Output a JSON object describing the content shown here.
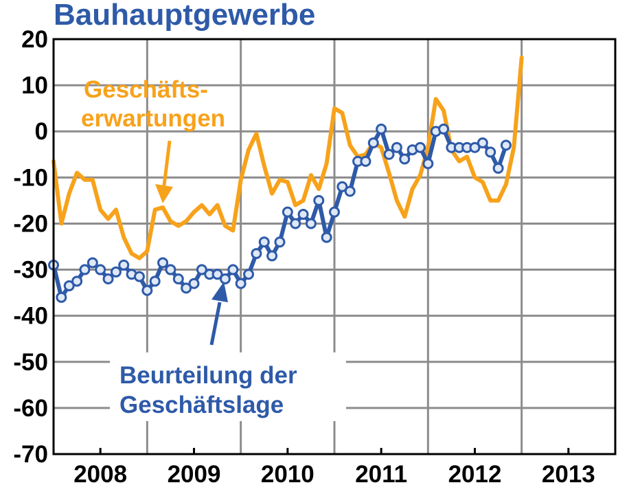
{
  "chart_data": {
    "type": "line",
    "title": "Bauhauptgewerbe",
    "xlabel": "",
    "ylabel": "",
    "ylim": [
      -70,
      20
    ],
    "yticks": [
      20,
      10,
      0,
      -10,
      -20,
      -30,
      -40,
      -50,
      -60,
      -70
    ],
    "x_tick_labels": [
      "2008",
      "2009",
      "2010",
      "2011",
      "2012",
      "2013"
    ],
    "x_range": [
      "2008-01",
      "2013-12"
    ],
    "grid": true,
    "series": [
      {
        "name": "Geschäfts-erwartungen",
        "color": "#f7a21b",
        "markers": false,
        "x": [
          "2008-01",
          "2008-02",
          "2008-03",
          "2008-04",
          "2008-05",
          "2008-06",
          "2008-07",
          "2008-08",
          "2008-09",
          "2008-10",
          "2008-11",
          "2008-12",
          "2009-01",
          "2009-02",
          "2009-03",
          "2009-04",
          "2009-05",
          "2009-06",
          "2009-07",
          "2009-08",
          "2009-09",
          "2009-10",
          "2009-11",
          "2009-12",
          "2010-01",
          "2010-02",
          "2010-03",
          "2010-04",
          "2010-05",
          "2010-06",
          "2010-07",
          "2010-08",
          "2010-09",
          "2010-10",
          "2010-11",
          "2010-12",
          "2011-01",
          "2011-02",
          "2011-03",
          "2011-04",
          "2011-05",
          "2011-06",
          "2011-07",
          "2011-08",
          "2011-09",
          "2011-10",
          "2011-11",
          "2011-12",
          "2012-01",
          "2012-02",
          "2012-03",
          "2012-04",
          "2012-05",
          "2012-06",
          "2012-07",
          "2012-08",
          "2012-09",
          "2012-10",
          "2012-11",
          "2012-12",
          "2013-01"
        ],
        "values": [
          -6.5,
          -20,
          -13.5,
          -9,
          -10.5,
          -10.5,
          -17,
          -19,
          -17,
          -23,
          -26.5,
          -27.5,
          -26,
          -17,
          -16.5,
          -19.5,
          -20.5,
          -19.5,
          -17.5,
          -16,
          -18,
          -16,
          -20.5,
          -21.5,
          -10.5,
          -4,
          -0.5,
          -7.5,
          -13.5,
          -10.5,
          -11,
          -16,
          -15,
          -9.5,
          -12.5,
          -7,
          5,
          4,
          -3,
          -5.5,
          -5,
          -2.5,
          -3.5,
          -9,
          -15,
          -18.5,
          -12.5,
          -9.5,
          -3.5,
          7,
          4.5,
          -4,
          -6.5,
          -5.5,
          -10,
          -11,
          -15,
          -15,
          -11.5,
          -3.5,
          16
        ]
      },
      {
        "name": "Beurteilung der Geschäftslage",
        "color": "#2e5aa8",
        "markers": true,
        "x": [
          "2008-01",
          "2008-02",
          "2008-03",
          "2008-04",
          "2008-05",
          "2008-06",
          "2008-07",
          "2008-08",
          "2008-09",
          "2008-10",
          "2008-11",
          "2008-12",
          "2009-01",
          "2009-02",
          "2009-03",
          "2009-04",
          "2009-05",
          "2009-06",
          "2009-07",
          "2009-08",
          "2009-09",
          "2009-10",
          "2009-11",
          "2009-12",
          "2010-01",
          "2010-02",
          "2010-03",
          "2010-04",
          "2010-05",
          "2010-06",
          "2010-07",
          "2010-08",
          "2010-09",
          "2010-10",
          "2010-11",
          "2010-12",
          "2011-01",
          "2011-02",
          "2011-03",
          "2011-04",
          "2011-05",
          "2011-06",
          "2011-07",
          "2011-08",
          "2011-09",
          "2011-10",
          "2011-11",
          "2011-12",
          "2012-01",
          "2012-02",
          "2012-03",
          "2012-04",
          "2012-05",
          "2012-06",
          "2012-07",
          "2012-08",
          "2012-09",
          "2012-10",
          "2012-11"
        ],
        "values": [
          -29,
          -36,
          -33.5,
          -32.5,
          -30,
          -28.5,
          -30,
          -32,
          -30.5,
          -29,
          -31,
          -31.5,
          -34.5,
          -32.5,
          -28.5,
          -30,
          -32,
          -34,
          -33,
          -30,
          -31,
          -31,
          -32,
          -30,
          -33,
          -31,
          -26.5,
          -24,
          -27,
          -24,
          -17.5,
          -20,
          -18,
          -20,
          -15,
          -23,
          -17.5,
          -12,
          -13,
          -6.5,
          -6.5,
          -2.5,
          0.5,
          -5,
          -3.5,
          -6,
          -4,
          -3.5,
          -7,
          0,
          0.5,
          -3.5,
          -3.5,
          -3.5,
          -3.5,
          -2.5,
          -4.5,
          -8,
          -3
        ]
      }
    ],
    "annotations": [
      {
        "series": "Geschäfts-erwartungen",
        "lines": [
          "Geschäfts-",
          "erwartungen"
        ],
        "color": "#f7a21b"
      },
      {
        "series": "Beurteilung der Geschäftslage",
        "lines": [
          "Beurteilung der",
          "Geschäftslage"
        ],
        "color": "#2e5aa8"
      }
    ]
  }
}
